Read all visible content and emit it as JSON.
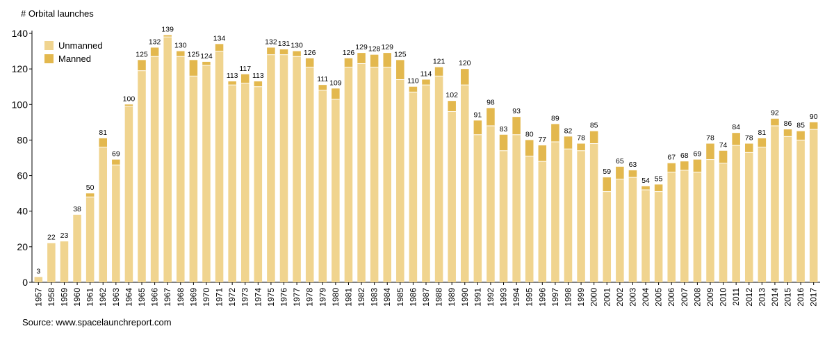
{
  "chart_data": {
    "type": "bar",
    "stacked": true,
    "ylabel": "# Orbital launches",
    "ylim": [
      0,
      140
    ],
    "yticks": [
      0,
      20,
      40,
      60,
      80,
      100,
      120,
      140
    ],
    "grid": false,
    "legend_position": "top-left",
    "source": "Source: www.spacelaunchreport.com",
    "categories": [
      "1957",
      "1958",
      "1959",
      "1960",
      "1961",
      "1962",
      "1963",
      "1964",
      "1965",
      "1966",
      "1967",
      "1968",
      "1969",
      "1970",
      "1971",
      "1972",
      "1973",
      "1974",
      "1975",
      "1976",
      "1977",
      "1978",
      "1979",
      "1980",
      "1981",
      "1982",
      "1983",
      "1984",
      "1985",
      "1986",
      "1987",
      "1988",
      "1989",
      "1990",
      "1991",
      "1992",
      "1993",
      "1994",
      "1995",
      "1996",
      "1997",
      "1998",
      "1999",
      "2000",
      "2001",
      "2002",
      "2003",
      "2004",
      "2005",
      "2006",
      "2007",
      "2008",
      "2009",
      "2010",
      "2011",
      "2012",
      "2013",
      "2014",
      "2015",
      "2016",
      "2017"
    ],
    "series": [
      {
        "name": "Unmanned",
        "color": "#f0d48f",
        "values": [
          3,
          22,
          23,
          38,
          48,
          76,
          66,
          99,
          119,
          127,
          138,
          127,
          116,
          122,
          130,
          111,
          112,
          110,
          128,
          128,
          127,
          121,
          108,
          103,
          121,
          123,
          121,
          121,
          114,
          107,
          111,
          116,
          96,
          111,
          83,
          88,
          74,
          83,
          71,
          68,
          79,
          75,
          74,
          78,
          51,
          58,
          59,
          52,
          51,
          62,
          63,
          62,
          69,
          67,
          77,
          73,
          76,
          88,
          82,
          80,
          86
        ]
      },
      {
        "name": "Manned",
        "color": "#e3b84e",
        "values": [
          0,
          0,
          0,
          0,
          2,
          5,
          3,
          1,
          6,
          5,
          1,
          3,
          9,
          2,
          4,
          2,
          5,
          3,
          4,
          3,
          3,
          5,
          3,
          6,
          5,
          6,
          7,
          8,
          11,
          3,
          3,
          5,
          6,
          9,
          8,
          10,
          9,
          10,
          9,
          9,
          10,
          7,
          4,
          7,
          8,
          7,
          4,
          2,
          4,
          5,
          5,
          7,
          9,
          7,
          7,
          5,
          5,
          4,
          4,
          5,
          4
        ]
      }
    ],
    "totals": [
      3,
      22,
      23,
      38,
      50,
      81,
      69,
      100,
      125,
      132,
      139,
      130,
      125,
      124,
      134,
      113,
      117,
      113,
      132,
      131,
      130,
      126,
      111,
      109,
      126,
      129,
      128,
      129,
      125,
      110,
      114,
      121,
      102,
      120,
      91,
      98,
      83,
      93,
      80,
      77,
      89,
      82,
      78,
      85,
      59,
      65,
      63,
      54,
      55,
      67,
      68,
      69,
      78,
      74,
      84,
      78,
      81,
      92,
      86,
      85,
      90
    ]
  }
}
